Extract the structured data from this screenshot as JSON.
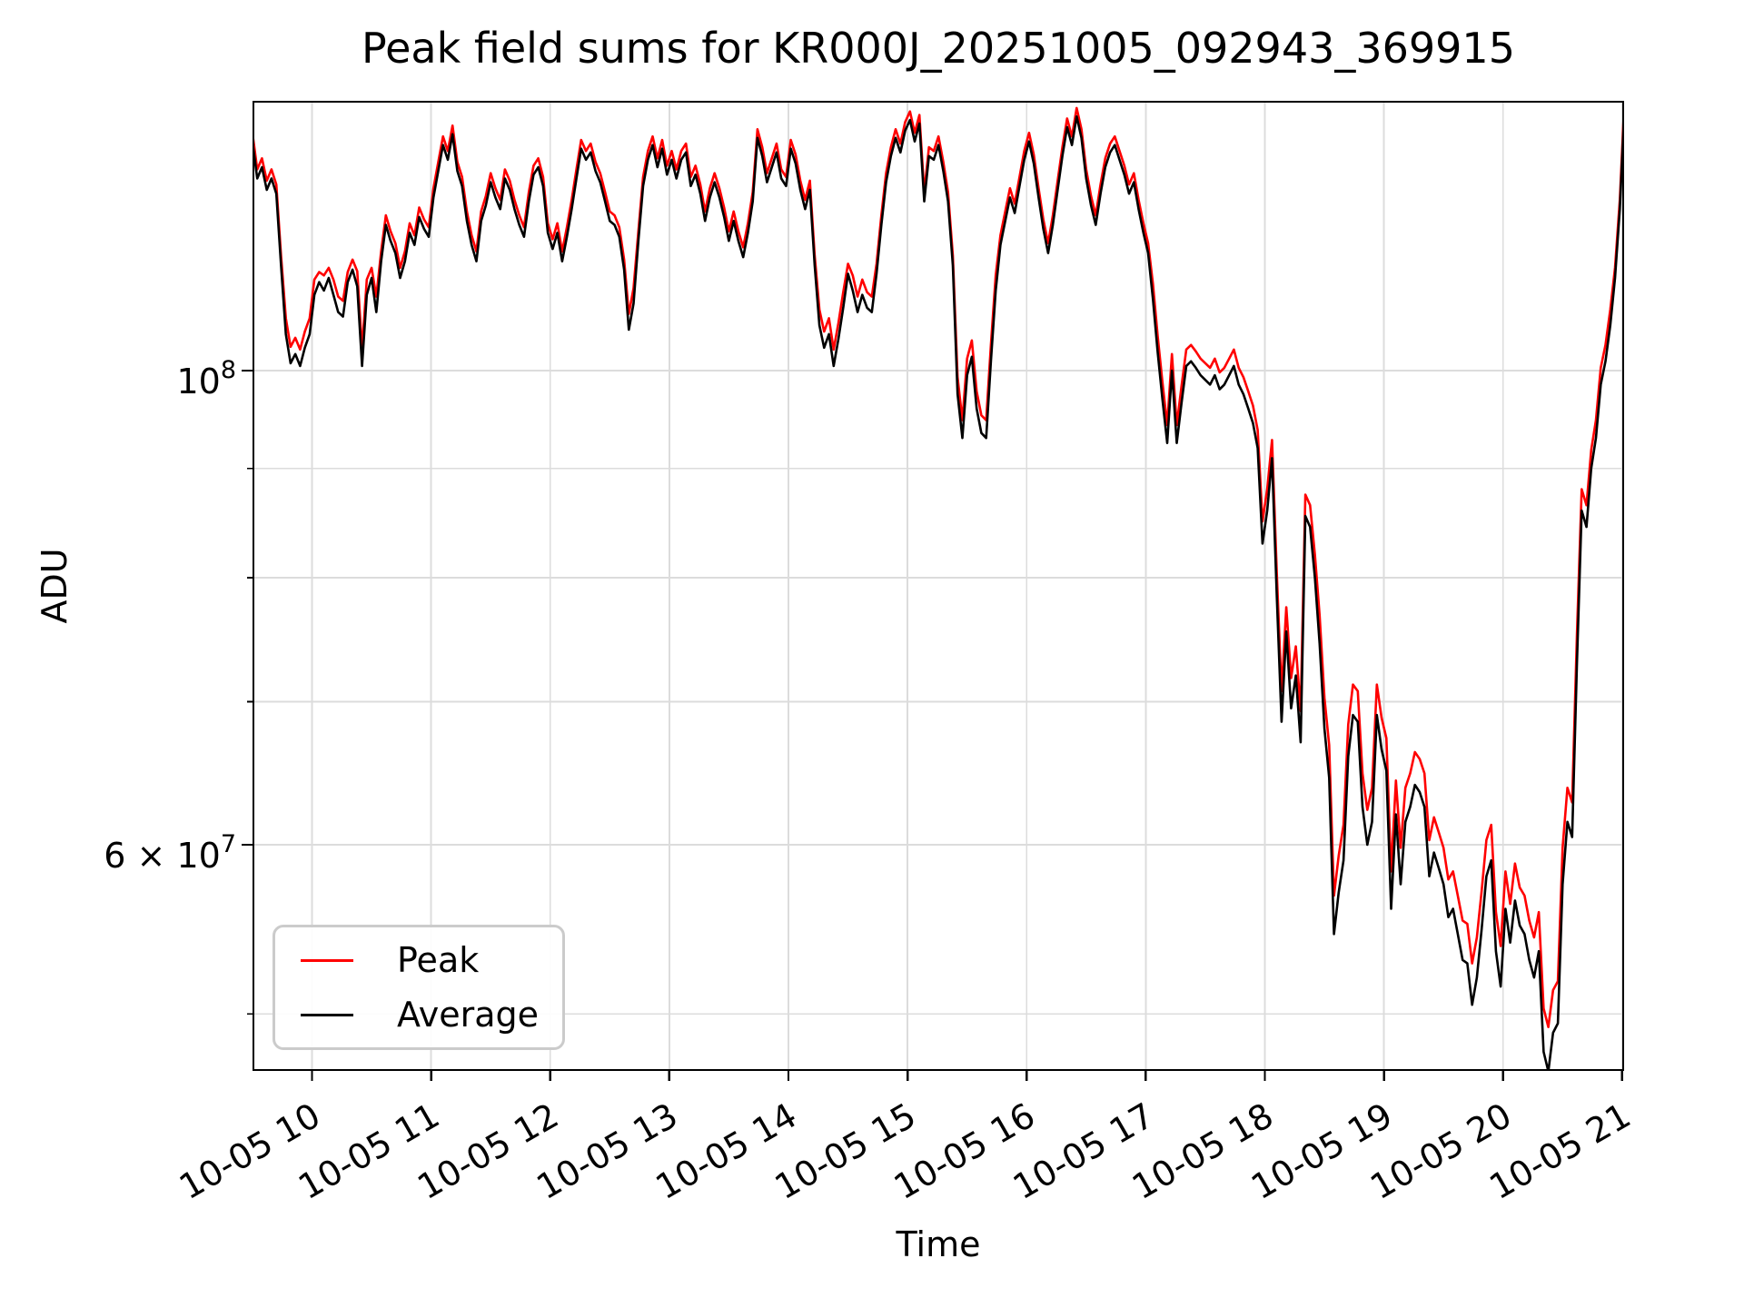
{
  "chart_data": {
    "type": "line",
    "title": "Peak field sums for KR000J_20251005_092943_369915",
    "xlabel": "Time",
    "ylabel": "ADU",
    "y_scale": "log",
    "grid": true,
    "legend_position": "lower left",
    "adu_unit_scale": 1000000,
    "ylim_adu": [
      47000000,
      133600000
    ],
    "x_axis_date": "10-05",
    "x_ticks": [
      {
        "hour": 10,
        "label": "10-05 10"
      },
      {
        "hour": 11,
        "label": "10-05 11"
      },
      {
        "hour": 12,
        "label": "10-05 12"
      },
      {
        "hour": 13,
        "label": "10-05 13"
      },
      {
        "hour": 14,
        "label": "10-05 14"
      },
      {
        "hour": 15,
        "label": "10-05 15"
      },
      {
        "hour": 16,
        "label": "10-05 16"
      },
      {
        "hour": 17,
        "label": "10-05 17"
      },
      {
        "hour": 18,
        "label": "10-05 18"
      },
      {
        "hour": 19,
        "label": "10-05 19"
      },
      {
        "hour": 20,
        "label": "10-05 20"
      },
      {
        "hour": 21,
        "label": "10-05 21"
      }
    ],
    "yaxis": {
      "labeled_ticks": [
        {
          "value_millions": 100,
          "label_base": "10",
          "label_exp": "8"
        },
        {
          "value_millions": 60,
          "label_base": "6 × 10",
          "label_exp": "7"
        }
      ],
      "minor_tick_values_millions": [
        50,
        70,
        80,
        90
      ],
      "grid_values_millions": [
        50,
        60,
        70,
        80,
        90,
        100
      ]
    },
    "x_hours_start": 9.5,
    "x_hours_step": 0.04,
    "series": [
      {
        "name": "Peak",
        "color": "#ff0000",
        "values_millions": [
          129.2,
          124.2,
          125.7,
          122.7,
          124.2,
          122.2,
          113.2,
          105.8,
          102.6,
          103.6,
          102.3,
          104.3,
          105.8,
          110.3,
          111.2,
          110.8,
          111.7,
          110.3,
          108.3,
          107.8,
          111.2,
          112.7,
          111.3,
          102.3,
          110.3,
          111.7,
          108.3,
          113.7,
          118.2,
          116.2,
          114.7,
          111.7,
          113.7,
          117.2,
          115.7,
          119.2,
          117.7,
          116.7,
          121.7,
          125.2,
          128.7,
          126.7,
          130.2,
          125.2,
          123.2,
          118.7,
          115.7,
          113.7,
          118.7,
          120.7,
          123.7,
          121.7,
          120.2,
          124.2,
          122.7,
          120.2,
          118.2,
          116.7,
          121.2,
          124.7,
          125.7,
          123.2,
          117.2,
          115.2,
          117.2,
          113.7,
          116.7,
          120.2,
          124.2,
          128.2,
          126.7,
          127.7,
          125.2,
          123.7,
          121.2,
          118.7,
          118.2,
          116.7,
          112.7,
          106.3,
          109.3,
          116.2,
          123.2,
          126.7,
          128.7,
          125.7,
          128.2,
          124.7,
          126.7,
          124.2,
          126.7,
          127.7,
          123.2,
          124.7,
          122.2,
          118.7,
          121.7,
          123.7,
          121.7,
          119.2,
          116.2,
          118.7,
          116.2,
          114.2,
          117.2,
          121.2,
          129.7,
          127.2,
          123.7,
          125.7,
          127.7,
          124.2,
          123.2,
          128.2,
          126.2,
          122.7,
          120.2,
          122.7,
          113.2,
          106.8,
          104.3,
          105.8,
          102.3,
          105.3,
          108.8,
          112.2,
          110.8,
          108.3,
          110.3,
          108.8,
          108.3,
          112.2,
          118.2,
          123.7,
          127.2,
          129.7,
          127.7,
          130.7,
          132.2,
          129.2,
          131.7,
          121.2,
          127.2,
          126.7,
          128.7,
          125.2,
          121.2,
          113.2,
          99.3,
          94.8,
          101.3,
          103.3,
          97.8,
          95.3,
          94.8,
          102.8,
          110.8,
          115.7,
          118.7,
          121.7,
          119.7,
          123.2,
          126.7,
          129.2,
          126.2,
          121.7,
          117.7,
          114.7,
          118.2,
          122.7,
          127.2,
          131.2,
          128.7,
          132.7,
          129.7,
          124.2,
          120.7,
          118.2,
          122.2,
          125.7,
          127.7,
          128.7,
          126.7,
          124.7,
          122.2,
          123.7,
          120.2,
          117.2,
          114.7,
          109.8,
          103.8,
          98.8,
          94.3,
          101.8,
          94.3,
          98.3,
          102.3,
          102.8,
          102.1,
          101.3,
          100.8,
          100.3,
          101.3,
          99.8,
          100.3,
          101.3,
          102.3,
          100.3,
          99.3,
          97.8,
          96.3,
          93.8,
          85,
          88,
          92.8,
          80.5,
          70.8,
          77.5,
          71.8,
          74.3,
          69.3,
          87.5,
          86.5,
          82,
          76.8,
          70.3,
          66.8,
          56.8,
          59.3,
          61.3,
          68.3,
          71.3,
          70.8,
          64.8,
          62.3,
          63.8,
          71.3,
          68.8,
          67.3,
          58.3,
          64.3,
          59.8,
          63.8,
          64.8,
          66.3,
          65.8,
          64.8,
          60.3,
          61.8,
          60.8,
          59.8,
          57.8,
          58.3,
          56.8,
          55.3,
          55.1,
          52.8,
          54.3,
          57.1,
          60.3,
          61.3,
          55.8,
          53.8,
          58.3,
          56.3,
          58.8,
          57.3,
          56.8,
          55.3,
          54.3,
          55.8,
          50.3,
          49.3,
          51.3,
          51.8,
          59.8,
          63.8,
          62.8,
          75.3,
          88,
          86.5,
          91.8,
          94.8,
          100.3,
          102.8,
          106.8,
          111.7,
          120.2,
          134.2
        ]
      },
      {
        "name": "Average",
        "color": "#000000",
        "values_millions": [
          128,
          123,
          124.5,
          121.5,
          123,
          121,
          112,
          104,
          100.8,
          101.8,
          100.5,
          102.5,
          104,
          108.5,
          110,
          109,
          110.5,
          108.5,
          106.5,
          106,
          110,
          111.5,
          109.5,
          100.5,
          108.5,
          110.5,
          106.5,
          112.5,
          117,
          115,
          113.5,
          110.5,
          112.5,
          116,
          114.5,
          118,
          116.5,
          115.5,
          120.5,
          124,
          127.5,
          125.5,
          129,
          124,
          122,
          117.5,
          114.5,
          112.5,
          117.5,
          119.5,
          122.5,
          120.5,
          119,
          123,
          121.5,
          119,
          117,
          115.5,
          120,
          123.5,
          124.5,
          122,
          116,
          114,
          116,
          112.5,
          115.5,
          119,
          123,
          127,
          125.5,
          126.5,
          124,
          122.5,
          120,
          117.5,
          117,
          115.5,
          111.5,
          104.5,
          107.5,
          115,
          122,
          125.5,
          127.5,
          124.5,
          127,
          123.5,
          125.5,
          123,
          125.5,
          126.5,
          122,
          123.5,
          121,
          117.5,
          120.5,
          122.5,
          120.5,
          118,
          115,
          117.5,
          115,
          113,
          116,
          120,
          128.5,
          126,
          122.5,
          124.5,
          126.5,
          123,
          122,
          127,
          125,
          121.5,
          119,
          121.5,
          112,
          105,
          102.5,
          104,
          100.5,
          103.5,
          107,
          111,
          109,
          106.5,
          108.5,
          107,
          106.5,
          111,
          117,
          122.5,
          126,
          128.5,
          126.5,
          129.5,
          131,
          128,
          130.5,
          120,
          126,
          125.5,
          127.5,
          124,
          120,
          112,
          97.5,
          93,
          99.5,
          101.5,
          96,
          93.5,
          93,
          101,
          109,
          114.5,
          117.5,
          120.5,
          118.5,
          122,
          125.5,
          128,
          125,
          120.5,
          116.5,
          113.5,
          117,
          121.5,
          126,
          130,
          127.5,
          131.5,
          128.5,
          123,
          119.5,
          117,
          121,
          124.5,
          126.5,
          127.5,
          125.5,
          123.5,
          121,
          122.5,
          119,
          116,
          113.5,
          108,
          102,
          97,
          92.5,
          100,
          92.5,
          96.5,
          100.5,
          101,
          100.3,
          99.5,
          99,
          98.5,
          99.5,
          98,
          98.5,
          99.5,
          100.5,
          98.5,
          97.5,
          96,
          94.5,
          92,
          83,
          86,
          91,
          78.5,
          68.5,
          75.5,
          69.5,
          72,
          67,
          85.5,
          84.5,
          80,
          74.5,
          68,
          64.5,
          54.5,
          57,
          59,
          66,
          69,
          68.5,
          62.5,
          60,
          61.5,
          69,
          66.5,
          65,
          56,
          62,
          57.5,
          61.5,
          62.5,
          64,
          63.5,
          62.5,
          58,
          59.5,
          58.5,
          57.5,
          55.5,
          56,
          54.5,
          53,
          52.8,
          50.5,
          52,
          54.8,
          58,
          59,
          53.5,
          51.5,
          56,
          54,
          56.5,
          55,
          54.5,
          53,
          52,
          53.5,
          48,
          47,
          49,
          49.5,
          57.5,
          61.5,
          60.5,
          73,
          86,
          84.5,
          90,
          93,
          98.5,
          101,
          105,
          110.5,
          119,
          133
        ]
      }
    ]
  },
  "legend": {
    "entries": [
      {
        "label": "Peak",
        "color": "#ff0000"
      },
      {
        "label": "Average",
        "color": "#000000"
      }
    ]
  },
  "style": {
    "grid_color": "#dcdcdc",
    "spine_color": "#000000",
    "background": "#ffffff"
  }
}
